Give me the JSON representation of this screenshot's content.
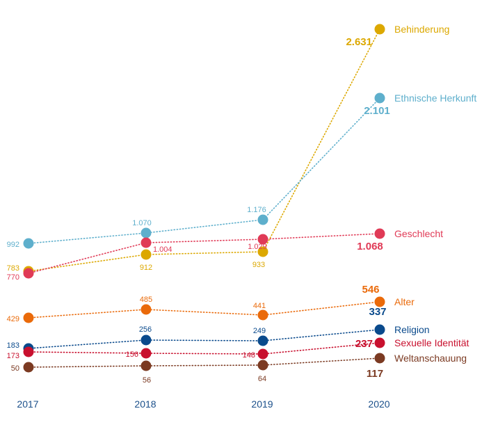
{
  "chart_data": {
    "type": "line",
    "x": [
      "2017",
      "2018",
      "2019",
      "2020"
    ],
    "ylim": [
      0,
      2700
    ],
    "grid": false,
    "legend": "right-of-last-point",
    "series": [
      {
        "name": "Behinderung",
        "color": "#dca800",
        "values": [
          783,
          912,
          933,
          2631
        ],
        "labels": [
          "783",
          "912",
          "933",
          "2.631"
        ]
      },
      {
        "name": "Ethnische Herkunft",
        "color": "#5eafcc",
        "values": [
          992,
          1070,
          1176,
          2101
        ],
        "labels": [
          "992",
          "1.070",
          "1.176",
          "2.101"
        ]
      },
      {
        "name": "Geschlecht",
        "color": "#e03a56",
        "values": [
          770,
          1004,
          1029,
          1068
        ],
        "labels": [
          "770",
          "1.004",
          "1.029",
          "1.068"
        ]
      },
      {
        "name": "Alter",
        "color": "#ea6a0a",
        "values": [
          429,
          485,
          441,
          546
        ],
        "labels": [
          "429",
          "485",
          "441",
          "546"
        ]
      },
      {
        "name": "Religion",
        "color": "#0a4a8c",
        "values": [
          183,
          256,
          249,
          337
        ],
        "labels": [
          "183",
          "256",
          "249",
          "337"
        ]
      },
      {
        "name": "Sexuelle Identität",
        "color": "#c8102e",
        "values": [
          173,
          156,
          148,
          237
        ],
        "labels": [
          "173",
          "156",
          "148",
          "237"
        ]
      },
      {
        "name": "Weltanschauung",
        "color": "#7b3a22",
        "values": [
          50,
          56,
          64,
          117
        ],
        "labels": [
          "50",
          "56",
          "64",
          "117"
        ]
      }
    ]
  }
}
